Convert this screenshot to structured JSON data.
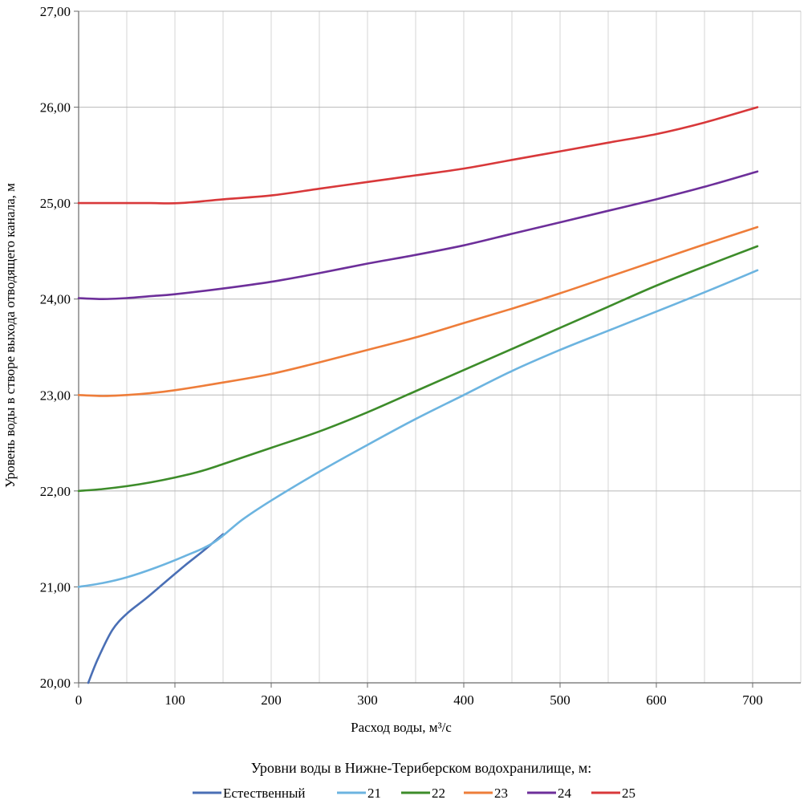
{
  "chart_data": {
    "type": "line",
    "title": "",
    "xlabel": "Расход воды, м³/с",
    "ylabel": "Уровень воды в створе выхода отводящего канала, м",
    "xlim": [
      0,
      750
    ],
    "ylim": [
      20,
      27
    ],
    "x_ticks": [
      0,
      100,
      200,
      300,
      400,
      500,
      600,
      700
    ],
    "x_tick_labels": [
      "0",
      "100",
      "200",
      "300",
      "400",
      "500",
      "600",
      "700"
    ],
    "y_ticks": [
      20,
      21,
      22,
      23,
      24,
      25,
      26,
      27
    ],
    "y_tick_labels": [
      "20,00",
      "21,00",
      "22,00",
      "23,00",
      "24,00",
      "25,00",
      "26,00",
      "27,00"
    ],
    "grid": true,
    "legend_title": "Уровни воды в Нижне-Териберском водохранилище, м:",
    "legend_position": "bottom",
    "series": [
      {
        "name": "Естественный",
        "color": "#4a6fb5",
        "x": [
          10,
          20,
          35,
          50,
          70,
          90,
          110,
          130,
          150
        ],
        "y": [
          20.0,
          20.25,
          20.55,
          20.72,
          20.88,
          21.05,
          21.22,
          21.38,
          21.55
        ]
      },
      {
        "name": "21",
        "color": "#6cb4e0",
        "x": [
          0,
          25,
          50,
          80,
          110,
          140,
          170,
          200,
          250,
          300,
          350,
          400,
          450,
          500,
          550,
          600,
          650,
          705
        ],
        "y": [
          21.0,
          21.04,
          21.1,
          21.2,
          21.32,
          21.46,
          21.7,
          21.9,
          22.2,
          22.48,
          22.75,
          23.0,
          23.25,
          23.47,
          23.67,
          23.87,
          24.07,
          24.3
        ]
      },
      {
        "name": "22",
        "color": "#3d8c2a",
        "x": [
          0,
          25,
          50,
          75,
          100,
          125,
          150,
          200,
          250,
          300,
          350,
          400,
          450,
          500,
          550,
          600,
          650,
          705
        ],
        "y": [
          22.0,
          22.02,
          22.05,
          22.09,
          22.14,
          22.2,
          22.28,
          22.45,
          22.62,
          22.82,
          23.04,
          23.26,
          23.48,
          23.7,
          23.92,
          24.14,
          24.34,
          24.55
        ]
      },
      {
        "name": "23",
        "color": "#ee7d3a",
        "x": [
          0,
          25,
          50,
          75,
          100,
          150,
          200,
          250,
          300,
          350,
          400,
          450,
          500,
          550,
          600,
          650,
          705
        ],
        "y": [
          23.0,
          22.99,
          23.0,
          23.02,
          23.05,
          23.13,
          23.22,
          23.34,
          23.47,
          23.6,
          23.75,
          23.9,
          24.06,
          24.23,
          24.4,
          24.57,
          24.75
        ]
      },
      {
        "name": "24",
        "color": "#6d2f9a",
        "x": [
          0,
          25,
          50,
          75,
          100,
          150,
          200,
          250,
          300,
          350,
          400,
          450,
          500,
          550,
          600,
          650,
          705
        ],
        "y": [
          24.01,
          24.0,
          24.01,
          24.03,
          24.05,
          24.11,
          24.18,
          24.27,
          24.37,
          24.46,
          24.56,
          24.68,
          24.8,
          24.92,
          25.04,
          25.17,
          25.33
        ]
      },
      {
        "name": "25",
        "color": "#d8383a",
        "x": [
          0,
          25,
          50,
          75,
          105,
          150,
          200,
          250,
          300,
          350,
          400,
          450,
          500,
          550,
          600,
          650,
          705
        ],
        "y": [
          25.0,
          25.0,
          25.0,
          25.0,
          25.0,
          25.04,
          25.08,
          25.15,
          25.22,
          25.29,
          25.36,
          25.45,
          25.54,
          25.63,
          25.72,
          25.84,
          26.0
        ]
      }
    ]
  }
}
